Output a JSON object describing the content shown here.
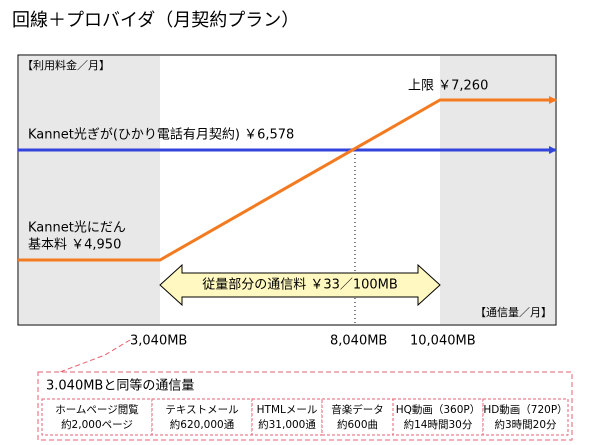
{
  "title": "回線＋プロバイダ（月契約プラン）",
  "y_axis_label": "【利用料金／月】",
  "x_axis_label": "【通信量／月】",
  "flat_line_label": "Kannet光ぎが(ひかり電話有月契約) ￥6,578",
  "cap_label": "上限 ￥7,260",
  "base_label": [
    "Kannet光にだん",
    "基本料 ￥4,950"
  ],
  "metered_label": "従量部分の通信料 ￥33／100MB",
  "x_labels": [
    "3,040MB",
    "8,040MB",
    "10,040MB"
  ],
  "callout": {
    "title": "3.040MBと同等の通信量",
    "items": [
      [
        "ホームページ閲覧",
        "約2,000ページ"
      ],
      [
        "テキストメール",
        "約620,000通"
      ],
      [
        "HTMLメール",
        "約31,000通"
      ],
      [
        "音楽データ",
        "約600曲"
      ],
      [
        "HQ動画（360P）",
        "約14時間30分"
      ],
      [
        "HD動画（720P）",
        "約3時間20分"
      ]
    ]
  }
}
